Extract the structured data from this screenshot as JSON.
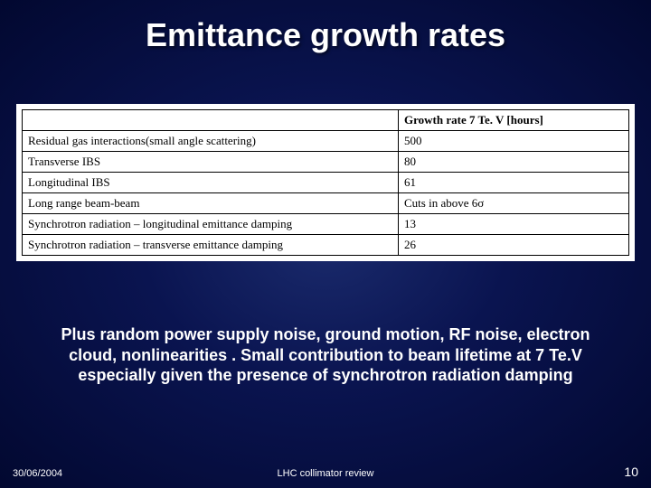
{
  "title": "Emittance growth rates",
  "table": {
    "header_label": "",
    "header_value": "Growth rate 7 Te. V [hours]",
    "rows": [
      {
        "label": "Residual gas interactions(small angle scattering)",
        "value": "500"
      },
      {
        "label": "Transverse IBS",
        "value": "80"
      },
      {
        "label": "Longitudinal IBS",
        "value": "61"
      },
      {
        "label": "Long range beam-beam",
        "value": "Cuts in above 6σ"
      },
      {
        "label": "Synchrotron radiation – longitudinal emittance damping",
        "value": "13"
      },
      {
        "label": "Synchrotron radiation – transverse emittance damping",
        "value": "26"
      }
    ]
  },
  "body_text": "Plus random power supply noise, ground motion, RF noise, electron cloud, nonlinearities .  Small contribution to beam lifetime at 7 Te.V especially given the presence of synchrotron radiation damping",
  "footer": {
    "date": "30/06/2004",
    "center": "LHC collimator review",
    "page": "10"
  },
  "colors": {
    "text": "#ffffff",
    "table_bg": "#ffffff",
    "table_text": "#000000",
    "border": "#000000"
  }
}
